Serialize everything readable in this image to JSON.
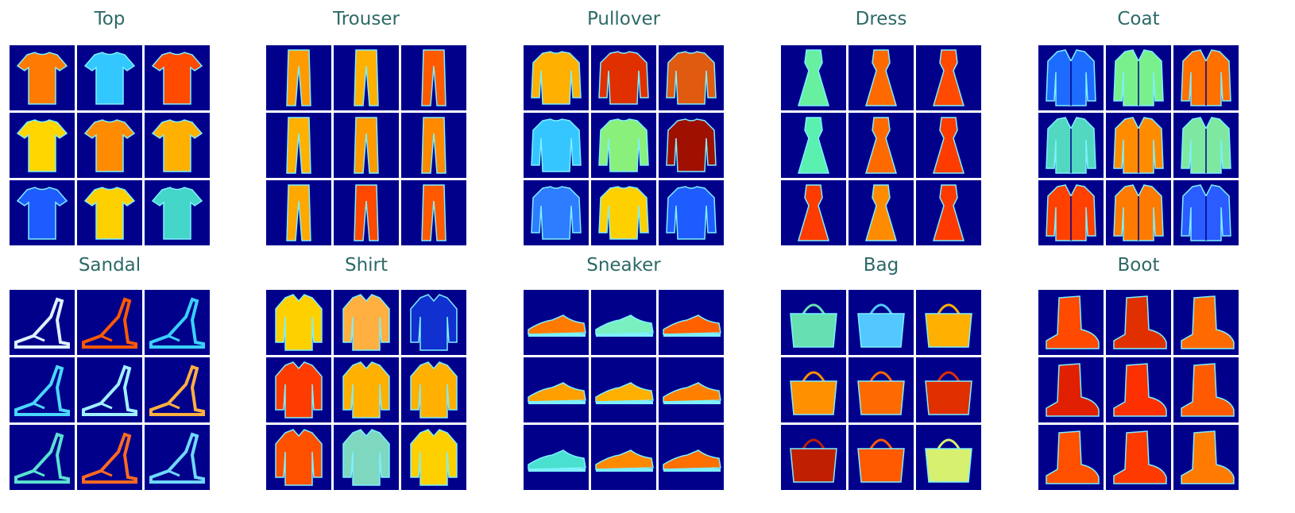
{
  "panels": [
    {
      "label": "Top",
      "kind": "top",
      "colors": [
        "#ff7a00",
        "#33c7ff",
        "#ff4a00",
        "#ffd600",
        "#ff8c00",
        "#ffb000",
        "#1e5cff",
        "#ffd000",
        "#44d6c8"
      ]
    },
    {
      "label": "Trouser",
      "kind": "trouser",
      "colors": [
        "#ff9b00",
        "#ffb000",
        "#ff5a00",
        "#ffb000",
        "#ff9a00",
        "#ff8a00",
        "#ffa800",
        "#ff4800",
        "#ff5a00"
      ]
    },
    {
      "label": "Pullover",
      "kind": "pullover",
      "colors": [
        "#ffb000",
        "#e03000",
        "#e05a10",
        "#36c6ff",
        "#8af07c",
        "#a01000",
        "#2e7cff",
        "#ffd000",
        "#1e5cff"
      ]
    },
    {
      "label": "Dress",
      "kind": "dress",
      "colors": [
        "#66f0a0",
        "#ff6a00",
        "#ff4a00",
        "#59f0b0",
        "#ff6a00",
        "#ff3c00",
        "#ff3c00",
        "#ff8c00",
        "#ff3a00"
      ]
    },
    {
      "label": "Coat",
      "kind": "coat",
      "colors": [
        "#1e6cff",
        "#7af08c",
        "#ff7000",
        "#52d8c0",
        "#ff8c00",
        "#7ee8a0",
        "#ff4000",
        "#ff7a00",
        "#2a5cff"
      ]
    },
    {
      "label": "Sandal",
      "kind": "sandal",
      "colors": [
        "#dff0ff",
        "#ff5a00",
        "#3ad0ff",
        "#4ad6ff",
        "#a0f0ff",
        "#ffb040",
        "#5ae0d0",
        "#ff6a20",
        "#70d8ff"
      ]
    },
    {
      "label": "Shirt",
      "kind": "shirt",
      "colors": [
        "#ffd000",
        "#ffb040",
        "#1030d0",
        "#ff3c00",
        "#ffb000",
        "#ffb000",
        "#ff5000",
        "#7ed8c0",
        "#ffd000"
      ]
    },
    {
      "label": "Sneaker",
      "kind": "sneaker",
      "colors": [
        "#ff7a00",
        "#7af0c0",
        "#ff6000",
        "#ffa000",
        "#ffb000",
        "#ff8000",
        "#4ae0d0",
        "#ff8a00",
        "#ff7000"
      ]
    },
    {
      "label": "Bag",
      "kind": "bag",
      "colors": [
        "#66e0b0",
        "#52c8ff",
        "#ffb000",
        "#ff9000",
        "#ff6a00",
        "#e03000",
        "#c02000",
        "#ff5a00",
        "#d8f070"
      ]
    },
    {
      "label": "Boot",
      "kind": "boot",
      "colors": [
        "#ff4a00",
        "#e03000",
        "#ff6a00",
        "#e02000",
        "#ff3000",
        "#ff5a00",
        "#ff5000",
        "#ff3a00",
        "#ff7a00"
      ]
    }
  ]
}
